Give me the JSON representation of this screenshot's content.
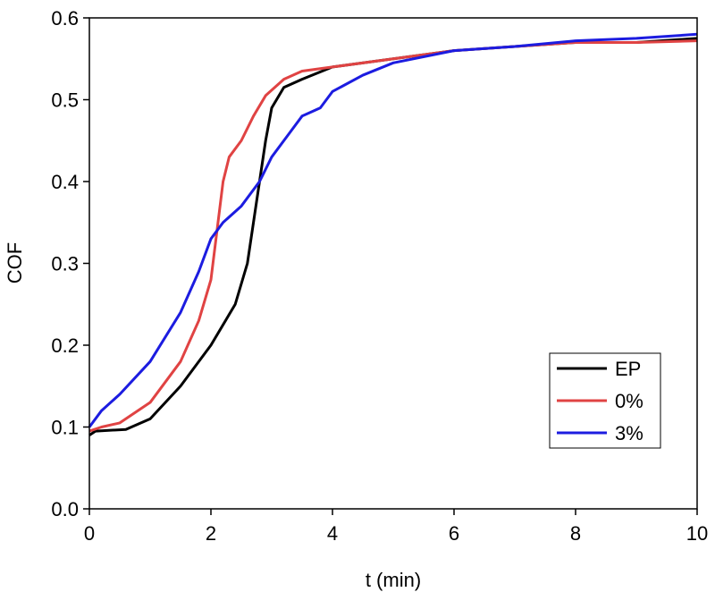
{
  "chart_data": {
    "type": "line",
    "xlabel": "t (min)",
    "ylabel": "COF",
    "xlim": [
      0,
      10
    ],
    "ylim": [
      0,
      0.6
    ],
    "xticks": [
      0,
      2,
      4,
      6,
      8,
      10
    ],
    "yticks": [
      {
        "value": 0,
        "label": "0.0"
      },
      0.1,
      0.2,
      0.3,
      0.4,
      0.5,
      0.6
    ],
    "legend": "lower right",
    "series": [
      {
        "name": "EP",
        "color": "#000000",
        "x": [
          0,
          0.1,
          0.6,
          1.0,
          1.5,
          2.0,
          2.4,
          2.6,
          2.7,
          2.8,
          2.9,
          3.0,
          3.2,
          3.5,
          4.0,
          5.0,
          6.0,
          7.0,
          8.0,
          9.0,
          10.0
        ],
        "values": [
          0.09,
          0.095,
          0.097,
          0.11,
          0.15,
          0.2,
          0.25,
          0.3,
          0.35,
          0.4,
          0.45,
          0.49,
          0.515,
          0.525,
          0.54,
          0.55,
          0.56,
          0.565,
          0.57,
          0.57,
          0.575
        ]
      },
      {
        "name": "0%",
        "color": "#e04343",
        "x": [
          0,
          0.2,
          0.5,
          1.0,
          1.5,
          1.8,
          2.0,
          2.1,
          2.2,
          2.3,
          2.5,
          2.7,
          2.9,
          3.2,
          3.5,
          4.0,
          5.0,
          6.0,
          7.0,
          8.0,
          9.0,
          10.0
        ],
        "values": [
          0.095,
          0.1,
          0.105,
          0.13,
          0.18,
          0.23,
          0.28,
          0.34,
          0.4,
          0.43,
          0.45,
          0.48,
          0.505,
          0.525,
          0.535,
          0.54,
          0.55,
          0.56,
          0.565,
          0.57,
          0.57,
          0.572
        ]
      },
      {
        "name": "3%",
        "color": "#1c1ce0",
        "x": [
          0,
          0.2,
          0.5,
          1.0,
          1.5,
          1.8,
          2.0,
          2.2,
          2.5,
          2.8,
          3.0,
          3.3,
          3.5,
          3.8,
          4.0,
          4.5,
          5.0,
          6.0,
          7.0,
          8.0,
          9.0,
          10.0
        ],
        "values": [
          0.1,
          0.12,
          0.14,
          0.18,
          0.24,
          0.29,
          0.33,
          0.35,
          0.37,
          0.4,
          0.43,
          0.46,
          0.48,
          0.49,
          0.51,
          0.53,
          0.545,
          0.56,
          0.565,
          0.572,
          0.575,
          0.58
        ]
      }
    ]
  }
}
